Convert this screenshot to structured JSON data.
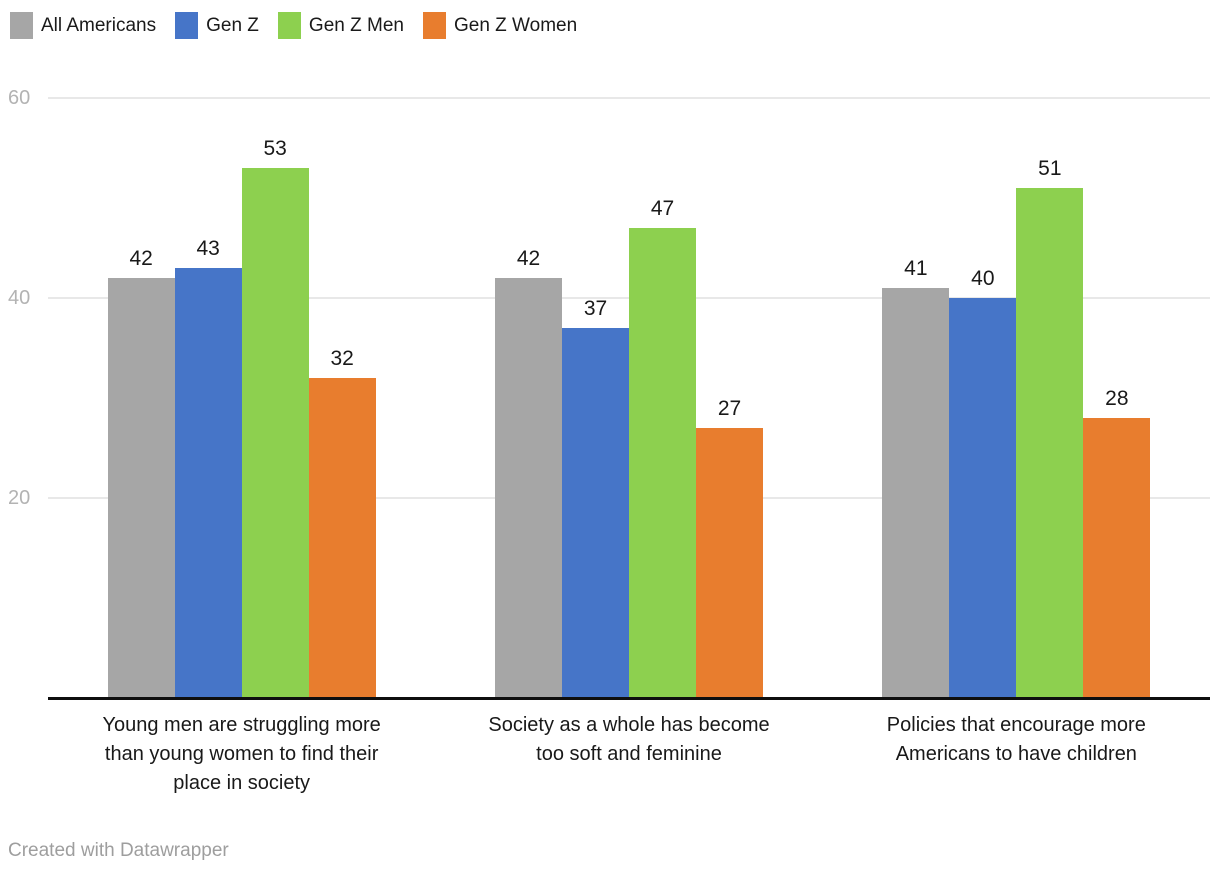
{
  "chart_data": {
    "type": "bar",
    "title": "",
    "xlabel": "",
    "ylabel": "",
    "categories": [
      "Young men are struggling more than young women to find their place in society",
      "Society as a whole has become too soft and feminine",
      "Policies that encourage more Americans to have children"
    ],
    "series": [
      {
        "name": "All Americans",
        "color": "#a6a6a6",
        "values": [
          42,
          42,
          41
        ]
      },
      {
        "name": "Gen Z",
        "color": "#4675c8",
        "values": [
          43,
          37,
          40
        ]
      },
      {
        "name": "Gen Z Men",
        "color": "#8dd04f",
        "values": [
          53,
          47,
          51
        ]
      },
      {
        "name": "Gen Z Women",
        "color": "#e87d2e",
        "values": [
          32,
          27,
          28
        ]
      }
    ],
    "yticks": [
      20,
      40,
      60
    ],
    "ylim": [
      0,
      62
    ],
    "grid": "horizontal",
    "legend_position": "top",
    "value_labels": "above-bars"
  },
  "colors": {
    "gridline": "#e8e8e8",
    "axis_line": "#0f0f0f",
    "tick_label": "#b3b3b3",
    "text": "#191919",
    "credit_text": "#9e9e9e"
  },
  "footer": {
    "credit": "Created with Datawrapper"
  }
}
